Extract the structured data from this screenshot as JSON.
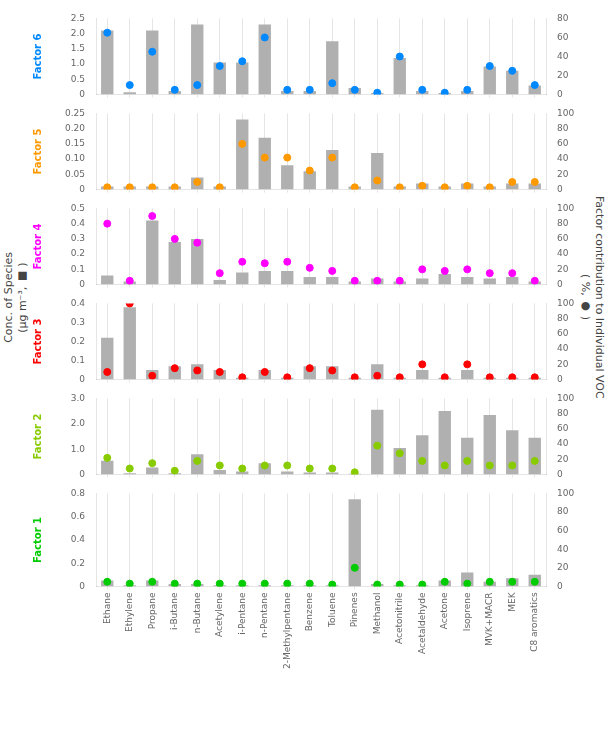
{
  "chart_data": [
    {
      "type": "bar",
      "ylabel": "Factor 6",
      "grid": "x",
      "categories": [
        null,
        null,
        null,
        null,
        null,
        null,
        null,
        null,
        null,
        null,
        null,
        null,
        null,
        null,
        null,
        null,
        null,
        null,
        null,
        null
      ],
      "ylim": [
        0,
        2.5
      ],
      "yticks": [
        0,
        0.5,
        {
          "value": 1,
          "label": "1.0"
        },
        1.5,
        {
          "value": 2,
          "label": "2.0"
        },
        2.5
      ],
      "y2lim": [
        0,
        80
      ],
      "y2ticks": [
        0,
        20,
        40,
        60,
        80
      ],
      "series": [
        {
          "type": "bar",
          "color": "#b0b0b0",
          "values": [
            2.1,
            0.08,
            2.1,
            0.12,
            2.3,
            1.05,
            1.05,
            2.3,
            0.12,
            0.12,
            1.75,
            0.22,
            0.05,
            1.2,
            0.12,
            0.05,
            0.12,
            0.92,
            0.78,
            0.3
          ]
        },
        {
          "type": "scatter",
          "axis": "y2",
          "marker": "circle",
          "color": "#0088ff",
          "values": [
            65,
            10,
            45,
            5,
            10,
            30,
            35,
            60,
            5,
            5,
            12,
            5,
            2,
            40,
            5,
            2,
            5,
            30,
            25,
            10
          ]
        }
      ]
    },
    {
      "type": "bar",
      "ylabel": "Factor 5",
      "grid": "x",
      "categories": [
        null,
        null,
        null,
        null,
        null,
        null,
        null,
        null,
        null,
        null,
        null,
        null,
        null,
        null,
        null,
        null,
        null,
        null,
        null,
        null
      ],
      "ylim": [
        0,
        0.25
      ],
      "yticks": [
        0,
        0.05,
        {
          "value": 0.1,
          "label": "0.10"
        },
        0.15,
        {
          "value": 0.2,
          "label": "0.20"
        },
        0.25
      ],
      "y2lim": [
        0,
        100
      ],
      "y2ticks": [
        0,
        20,
        40,
        60,
        80,
        100
      ],
      "series": [
        {
          "type": "bar",
          "color": "#b0b0b0",
          "values": [
            0.01,
            0.01,
            0.01,
            0.01,
            0.04,
            0.01,
            0.23,
            0.17,
            0.08,
            0.06,
            0.13,
            0.01,
            0.12,
            0.01,
            0.02,
            0.01,
            0.02,
            0.01,
            0.02,
            0.02
          ]
        },
        {
          "type": "scatter",
          "axis": "y2",
          "marker": "circle",
          "color": "#ff9900",
          "values": [
            3,
            3,
            3,
            3,
            10,
            3,
            60,
            42,
            42,
            25,
            42,
            3,
            12,
            3,
            5,
            3,
            5,
            3,
            10,
            10
          ]
        }
      ]
    },
    {
      "type": "bar",
      "ylabel": "Factor 4",
      "grid": "x",
      "categories": [
        null,
        null,
        null,
        null,
        null,
        null,
        null,
        null,
        null,
        null,
        null,
        null,
        null,
        null,
        null,
        null,
        null,
        null,
        null,
        null
      ],
      "ylim": [
        0,
        0.5
      ],
      "yticks": [
        0,
        0.1,
        0.2,
        0.3,
        0.4,
        0.5
      ],
      "y2lim": [
        0,
        100
      ],
      "y2ticks": [
        0,
        20,
        40,
        60,
        80,
        100
      ],
      "series": [
        {
          "type": "bar",
          "color": "#b0b0b0",
          "values": [
            0.06,
            0.02,
            0.42,
            0.28,
            0.3,
            0.03,
            0.08,
            0.09,
            0.09,
            0.05,
            0.05,
            0.02,
            0.04,
            0.02,
            0.04,
            0.07,
            0.05,
            0.04,
            0.05,
            0.02
          ]
        },
        {
          "type": "scatter",
          "axis": "y2",
          "marker": "circle",
          "color": "#ff00ff",
          "values": [
            80,
            5,
            90,
            60,
            55,
            15,
            30,
            28,
            30,
            22,
            18,
            5,
            5,
            5,
            20,
            18,
            20,
            15,
            15,
            5
          ]
        }
      ]
    },
    {
      "type": "bar",
      "ylabel": "Factor 3",
      "grid": "x",
      "categories": [
        null,
        null,
        null,
        null,
        null,
        null,
        null,
        null,
        null,
        null,
        null,
        null,
        null,
        null,
        null,
        null,
        null,
        null,
        null,
        null
      ],
      "ylim": [
        0,
        0.4
      ],
      "yticks": [
        0,
        0.1,
        0.2,
        0.3,
        0.4
      ],
      "y2lim": [
        0,
        100
      ],
      "y2ticks": [
        0,
        20,
        40,
        60,
        80,
        100
      ],
      "series": [
        {
          "type": "bar",
          "color": "#b0b0b0",
          "values": [
            0.22,
            0.38,
            0.05,
            0.07,
            0.08,
            0.05,
            0.01,
            0.05,
            0.01,
            0.07,
            0.07,
            0.01,
            0.08,
            0.01,
            0.05,
            0.01,
            0.05,
            0.01,
            0.01,
            0.01
          ]
        },
        {
          "type": "scatter",
          "axis": "y2",
          "marker": "circle",
          "color": "#ff0000",
          "values": [
            10,
            100,
            5,
            15,
            12,
            10,
            3,
            10,
            3,
            15,
            12,
            3,
            5,
            3,
            20,
            3,
            20,
            3,
            3,
            3
          ]
        }
      ]
    },
    {
      "type": "bar",
      "ylabel": "Factor 2",
      "grid": "x",
      "categories": [
        null,
        null,
        null,
        null,
        null,
        null,
        null,
        null,
        null,
        null,
        null,
        null,
        null,
        null,
        null,
        null,
        null,
        null,
        null,
        null
      ],
      "ylim": [
        0,
        3.0
      ],
      "yticks": [
        0,
        {
          "value": 1,
          "label": "1.0"
        },
        {
          "value": 2,
          "label": "2.0"
        },
        {
          "value": 3,
          "label": "3.0"
        }
      ],
      "y2lim": [
        0,
        100
      ],
      "y2ticks": [
        0,
        20,
        40,
        60,
        80,
        100
      ],
      "series": [
        {
          "type": "bar",
          "color": "#b0b0b0",
          "values": [
            0.55,
            0.05,
            0.28,
            0.05,
            0.8,
            0.18,
            0.12,
            0.45,
            0.12,
            0.08,
            0.08,
            0.03,
            2.55,
            1.05,
            1.55,
            2.5,
            1.45,
            2.35,
            1.75,
            1.45
          ]
        },
        {
          "type": "scatter",
          "axis": "y2",
          "marker": "circle",
          "color": "#88cc00",
          "values": [
            22,
            8,
            15,
            5,
            18,
            12,
            8,
            12,
            12,
            8,
            8,
            3,
            38,
            28,
            18,
            12,
            18,
            12,
            12,
            18
          ]
        }
      ]
    },
    {
      "type": "bar",
      "ylabel": "Factor 1",
      "grid": "x",
      "categories": [
        "Ethane",
        "Ethylene",
        "Propane",
        "i-Butane",
        "n-Butane",
        "Acetylene",
        "i-Pentane",
        "n-Pentane",
        "2-Methylpentane",
        "Benzene",
        "Toluene",
        "Pinenes",
        "Methanol",
        "Acetonitrile",
        "Acetaldehyde",
        "Acetone",
        "Isoprene",
        "MVK+MACR",
        "MEK",
        "C8 aromatics"
      ],
      "ylim": [
        0,
        0.8
      ],
      "yticks": [
        0,
        0.2,
        0.4,
        0.6,
        0.8
      ],
      "y2lim": [
        0,
        100
      ],
      "y2ticks": [
        0,
        20,
        40,
        60,
        80,
        100
      ],
      "series": [
        {
          "type": "bar",
          "color": "#b0b0b0",
          "values": [
            0.05,
            0.01,
            0.05,
            0.02,
            0.02,
            0.01,
            0.01,
            0.01,
            0.01,
            0.01,
            0.01,
            0.75,
            0.02,
            0.01,
            0.01,
            0.05,
            0.12,
            0.04,
            0.07,
            0.1
          ]
        },
        {
          "type": "scatter",
          "axis": "y2",
          "marker": "circle",
          "color": "#00cc00",
          "values": [
            5,
            3,
            5,
            3,
            3,
            3,
            3,
            3,
            3,
            3,
            2,
            20,
            2,
            2,
            2,
            5,
            3,
            5,
            5,
            5
          ]
        }
      ]
    }
  ],
  "ylabel": [
    "Conc. of Species",
    "(μg m⁻³,  ■ )"
  ],
  "y2label": [
    "Factor contribution to Individual VOC",
    "( %,  ● )"
  ]
}
